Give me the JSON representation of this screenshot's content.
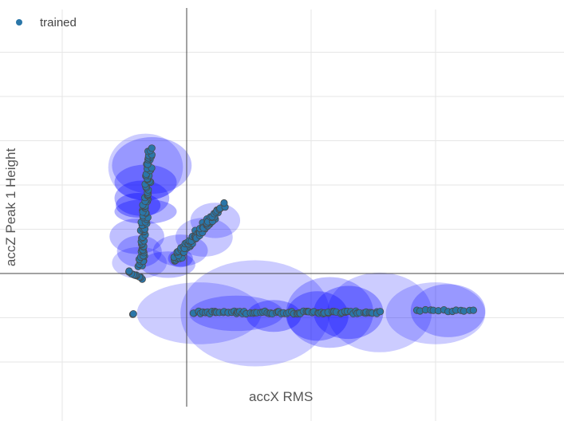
{
  "colors": {
    "point_fill": "#2a76a8",
    "point_stroke": "#4a4a4a",
    "ellipse": "#0000ff",
    "grid": "#e6e6e6",
    "zeroline": "#444444"
  },
  "chart_data": {
    "type": "scatter",
    "xlabel": "accX RMS",
    "ylabel": "accZ Peak 1 Height",
    "xlim": [
      -1.5,
      3.0
    ],
    "ylim": [
      -1.5,
      3.0
    ],
    "grid": true,
    "legend": {
      "placement": "top-left",
      "entries": [
        "trained"
      ]
    },
    "series": [
      {
        "name": "trained",
        "clusters": [
          {
            "kind": "line",
            "x0": -0.36,
            "y0": -0.06,
            "x1": -0.47,
            "y1": 0.02,
            "n": 10,
            "jitter": 0.01
          },
          {
            "kind": "line",
            "x0": -0.37,
            "y0": 0.08,
            "x1": -0.29,
            "y1": 1.41,
            "n": 90,
            "jitter": 0.025
          },
          {
            "kind": "line",
            "x0": -0.1,
            "y0": 0.15,
            "x1": 0.2,
            "y1": 0.62,
            "n": 70,
            "jitter": 0.03
          },
          {
            "kind": "line",
            "x0": 0.08,
            "y0": 0.42,
            "x1": 0.3,
            "y1": 0.78,
            "n": 30,
            "jitter": 0.02
          },
          {
            "kind": "line",
            "x0": 0.05,
            "y0": -0.44,
            "x1": 1.55,
            "y1": -0.44,
            "n": 90,
            "jitter": 0.015
          },
          {
            "kind": "line",
            "x0": 1.85,
            "y0": -0.42,
            "x1": 2.3,
            "y1": -0.42,
            "n": 14,
            "jitter": 0.01
          },
          {
            "kind": "point",
            "x": -0.43,
            "y": -0.46,
            "n": 2
          }
        ]
      }
    ],
    "ellipses": [
      {
        "cx": -0.28,
        "cy": 1.22,
        "rx": 0.32,
        "ry": 0.32,
        "opacity": 0.25
      },
      {
        "cx": -0.33,
        "cy": 1.2,
        "rx": 0.3,
        "ry": 0.38,
        "opacity": 0.2
      },
      {
        "cx": -0.33,
        "cy": 1.03,
        "rx": 0.25,
        "ry": 0.2,
        "opacity": 0.3
      },
      {
        "cx": -0.36,
        "cy": 0.85,
        "rx": 0.22,
        "ry": 0.2,
        "opacity": 0.3
      },
      {
        "cx": -0.39,
        "cy": 0.77,
        "rx": 0.18,
        "ry": 0.14,
        "opacity": 0.35
      },
      {
        "cx": -0.33,
        "cy": 0.7,
        "rx": 0.25,
        "ry": 0.14,
        "opacity": 0.3
      },
      {
        "cx": -0.4,
        "cy": 0.42,
        "rx": 0.22,
        "ry": 0.2,
        "opacity": 0.25
      },
      {
        "cx": -0.38,
        "cy": 0.25,
        "rx": 0.18,
        "ry": 0.18,
        "opacity": 0.25
      },
      {
        "cx": -0.38,
        "cy": 0.12,
        "rx": 0.22,
        "ry": 0.18,
        "opacity": 0.2
      },
      {
        "cx": 0.23,
        "cy": 0.6,
        "rx": 0.2,
        "ry": 0.2,
        "opacity": 0.22
      },
      {
        "cx": 0.14,
        "cy": 0.41,
        "rx": 0.23,
        "ry": 0.22,
        "opacity": 0.22
      },
      {
        "cx": -0.05,
        "cy": 0.26,
        "rx": 0.22,
        "ry": 0.18,
        "opacity": 0.25
      },
      {
        "cx": -0.15,
        "cy": 0.1,
        "rx": 0.22,
        "ry": 0.15,
        "opacity": 0.25
      },
      {
        "cx": -0.05,
        "cy": 0.17,
        "rx": 0.1,
        "ry": 0.1,
        "opacity": 0.3
      },
      {
        "cx": 0.55,
        "cy": -0.45,
        "rx": 0.6,
        "ry": 0.6,
        "opacity": 0.2
      },
      {
        "cx": 0.1,
        "cy": -0.45,
        "rx": 0.5,
        "ry": 0.35,
        "opacity": 0.2
      },
      {
        "cx": 0.4,
        "cy": -0.45,
        "rx": 0.38,
        "ry": 0.2,
        "opacity": 0.25
      },
      {
        "cx": 0.7,
        "cy": -0.48,
        "rx": 0.22,
        "ry": 0.18,
        "opacity": 0.3
      },
      {
        "cx": 1.05,
        "cy": -0.48,
        "rx": 0.25,
        "ry": 0.28,
        "opacity": 0.3
      },
      {
        "cx": 1.15,
        "cy": -0.44,
        "rx": 0.35,
        "ry": 0.4,
        "opacity": 0.25
      },
      {
        "cx": 1.3,
        "cy": -0.44,
        "rx": 0.28,
        "ry": 0.3,
        "opacity": 0.3
      },
      {
        "cx": 1.55,
        "cy": -0.44,
        "rx": 0.42,
        "ry": 0.45,
        "opacity": 0.2
      },
      {
        "cx": 2.1,
        "cy": -0.42,
        "rx": 0.3,
        "ry": 0.3,
        "opacity": 0.25
      },
      {
        "cx": 2.0,
        "cy": -0.45,
        "rx": 0.4,
        "ry": 0.35,
        "opacity": 0.2
      }
    ]
  }
}
